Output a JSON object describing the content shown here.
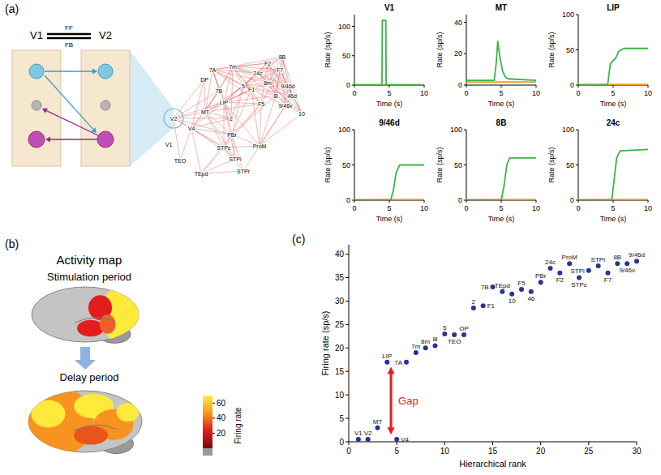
{
  "panel_labels": [
    "(a)",
    "(b)",
    "(c)"
  ],
  "circuit": {
    "areas": [
      "V1",
      "V2"
    ],
    "feedforward": "FF",
    "feedback": "FB"
  },
  "network": {
    "nodes": [
      "V1",
      "V2",
      "V4",
      "TEO",
      "TEpd",
      "MT",
      "DP",
      "7A",
      "7m",
      "7B",
      "LIP",
      "5",
      "2",
      "PBr",
      "STPc",
      "STPi",
      "STPr",
      "ProM",
      "F1",
      "F2",
      "F7",
      "F5",
      "8B",
      "8m",
      "8l",
      "9/46d",
      "9/46v",
      "46d",
      "10",
      "24c"
    ]
  },
  "activity_map": {
    "title": "Activity map",
    "periods": [
      "Stimulation period",
      "Delay period"
    ],
    "colorbar": {
      "label": "Firing rate",
      "range": [
        0,
        70
      ],
      "ticks": [
        20,
        40,
        60
      ]
    }
  },
  "chart_data": [
    {
      "type": "line",
      "title": "V1",
      "x_label": "Time (s)",
      "y_label": "Rate (sp/s)",
      "x": [
        0,
        3.95,
        4,
        4.5,
        4.55,
        10
      ],
      "xlim": [
        0,
        10
      ],
      "xticks": [
        0,
        5,
        10
      ],
      "ylim": [
        0,
        120
      ],
      "yticks": [
        0,
        50,
        100
      ],
      "series": [
        {
          "color": "#f7941d",
          "values": [
            1,
            1,
            1,
            1,
            1,
            1
          ]
        },
        {
          "color": "#39b54a",
          "values": [
            0,
            0,
            110,
            110,
            0,
            0
          ]
        }
      ]
    },
    {
      "type": "line",
      "title": "MT",
      "x_label": "Time (s)",
      "y_label": "Rate (sp/s)",
      "x": [
        0,
        4,
        4.3,
        4.5,
        4.8,
        5.2,
        5.6,
        6,
        10
      ],
      "xlim": [
        0,
        10
      ],
      "xticks": [
        0,
        5,
        10
      ],
      "ylim": [
        0,
        45
      ],
      "yticks": [
        0,
        20,
        40
      ],
      "series": [
        {
          "color": "#f7941d",
          "values": [
            2,
            2,
            2,
            2,
            2,
            2,
            2,
            2,
            2
          ]
        },
        {
          "color": "#39b54a",
          "values": [
            3,
            3,
            15,
            28,
            18,
            9,
            5,
            4,
            3
          ]
        }
      ]
    },
    {
      "type": "line",
      "title": "LIP",
      "x_label": "Time (s)",
      "y_label": "Rate (sp/s)",
      "x": [
        0,
        4.2,
        4.6,
        5,
        5.3,
        5.8,
        6.5,
        10
      ],
      "xlim": [
        0,
        10
      ],
      "xticks": [
        0,
        5,
        10
      ],
      "ylim": [
        0,
        100
      ],
      "yticks": [
        0,
        50,
        100
      ],
      "series": [
        {
          "color": "#f7941d",
          "values": [
            1,
            1,
            1,
            1,
            1,
            1,
            1,
            1
          ]
        },
        {
          "color": "#39b54a",
          "values": [
            0,
            0,
            30,
            35,
            37,
            48,
            52,
            52
          ]
        }
      ]
    },
    {
      "type": "line",
      "title": "9/46d",
      "x_label": "Time (s)",
      "y_label": "Rate (sp/s)",
      "x": [
        0,
        5.2,
        5.6,
        6,
        6.5,
        10
      ],
      "xlim": [
        0,
        10
      ],
      "xticks": [
        0,
        5,
        10
      ],
      "ylim": [
        0,
        100
      ],
      "yticks": [
        0,
        50,
        100
      ],
      "series": [
        {
          "color": "#f7941d",
          "values": [
            1,
            1,
            1,
            1,
            1,
            1
          ]
        },
        {
          "color": "#39b54a",
          "values": [
            0,
            0,
            15,
            40,
            50,
            50
          ]
        }
      ]
    },
    {
      "type": "line",
      "title": "8B",
      "x_label": "Time (s)",
      "y_label": "Rate (sp/s)",
      "x": [
        0,
        5,
        5.4,
        5.8,
        6.2,
        10
      ],
      "xlim": [
        0,
        10
      ],
      "xticks": [
        0,
        5,
        10
      ],
      "ylim": [
        0,
        100
      ],
      "yticks": [
        0,
        50,
        100
      ],
      "series": [
        {
          "color": "#f7941d",
          "values": [
            1,
            1,
            1,
            1,
            1,
            1
          ]
        },
        {
          "color": "#39b54a",
          "values": [
            0,
            0,
            20,
            50,
            60,
            60
          ]
        }
      ]
    },
    {
      "type": "line",
      "title": "24c",
      "x_label": "Time (s)",
      "y_label": "Rate (sp/s)",
      "x": [
        0,
        4.8,
        5.1,
        5.5,
        6,
        10
      ],
      "xlim": [
        0,
        10
      ],
      "xticks": [
        0,
        5,
        10
      ],
      "ylim": [
        0,
        100
      ],
      "yticks": [
        0,
        50,
        100
      ],
      "series": [
        {
          "color": "#f7941d",
          "values": [
            1,
            1,
            1,
            1,
            1,
            1
          ]
        },
        {
          "color": "#39b54a",
          "values": [
            0,
            0,
            25,
            60,
            70,
            72
          ]
        }
      ]
    },
    {
      "type": "scatter",
      "x_label": "Hierarchical rank",
      "y_label": "Firing rate (sp/s)",
      "color": "#2e3192",
      "labels": [
        "V1",
        "V2",
        "MT",
        "LIP",
        "V4",
        "7A",
        "7m",
        "8m",
        "8l",
        "5",
        "TEO",
        "OP",
        "2",
        "F1",
        "7B",
        "TEpd",
        "10",
        "F5",
        "46",
        "PBr",
        "24c",
        "F2",
        "ProM",
        "STPc",
        "STPi",
        "STPr",
        "F7",
        "8B",
        "9/46v",
        "9/46d"
      ],
      "x": [
        1,
        2,
        3,
        4,
        5,
        6,
        7,
        8,
        9,
        10,
        11,
        12,
        13,
        14,
        15,
        16,
        17,
        18,
        19,
        20,
        21,
        22,
        23,
        24,
        25,
        26,
        27,
        28,
        29,
        30
      ],
      "values": [
        0.5,
        0.5,
        3,
        17,
        0.5,
        17,
        19,
        20,
        20.5,
        23,
        22.8,
        22.8,
        28.5,
        29,
        33,
        32,
        31.5,
        32.5,
        32,
        34,
        37,
        36,
        38,
        35,
        36.5,
        37.5,
        36,
        38,
        38,
        38.5
      ],
      "xlim": [
        0,
        30
      ],
      "xticks": [
        0,
        5,
        10,
        15,
        20,
        25,
        30
      ],
      "ylim": [
        0,
        42
      ],
      "yticks": [
        0,
        5,
        10,
        15,
        20,
        25,
        30,
        35,
        40
      ],
      "annotation": {
        "text": "Gap",
        "x": 4.4,
        "y_from": 16,
        "y_to": 1.5,
        "color": "#e31e24"
      }
    }
  ]
}
